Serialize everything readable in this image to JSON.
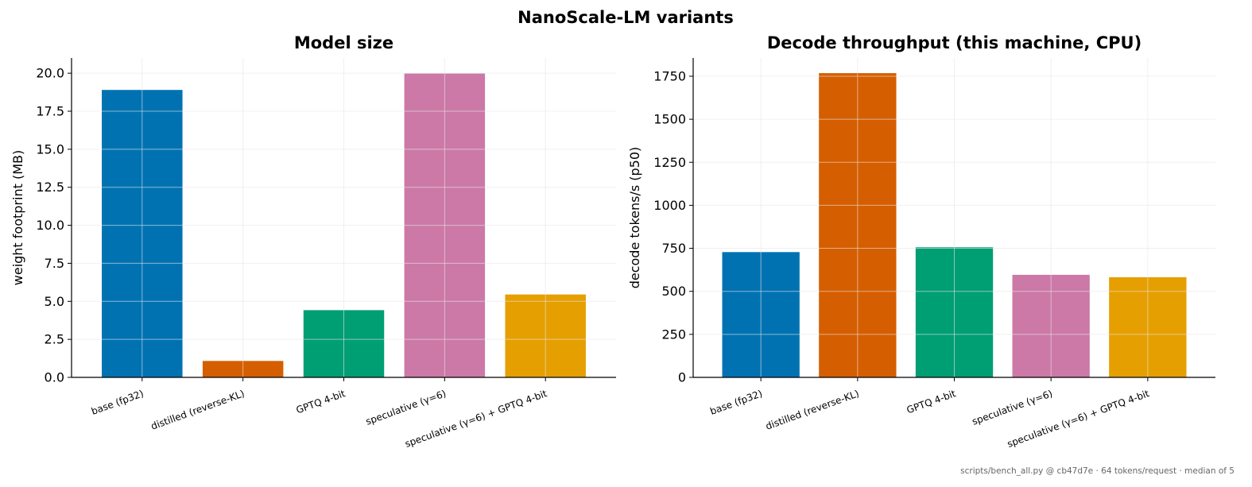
{
  "figure": {
    "suptitle": "NanoScale-LM variants",
    "footer": "scripts/bench_all.py @ cb47d7e · 64 tokens/request · median of 5"
  },
  "colors": [
    "#0072b2",
    "#d55e00",
    "#009e73",
    "#cc79a7",
    "#e69f00"
  ],
  "chart_data": [
    {
      "type": "bar",
      "title": "Model size",
      "xlabel": "",
      "ylabel": "weight footprint (MB)",
      "categories": [
        "base (fp32)",
        "distilled (reverse-KL)",
        "GPTQ 4-bit",
        "speculative (γ=6)",
        "speculative (γ=6) + GPTQ 4-bit"
      ],
      "values": [
        18.9,
        1.08,
        4.42,
        19.98,
        5.45
      ],
      "ylim": [
        0,
        21
      ],
      "yticks": [
        0,
        2.5,
        5,
        7.5,
        10,
        12.5,
        15,
        17.5,
        20
      ],
      "ytick_labels": [
        "0.0",
        "2.5",
        "5.0",
        "7.5",
        "10.0",
        "12.5",
        "15.0",
        "17.5",
        "20.0"
      ],
      "grid": true
    },
    {
      "type": "bar",
      "title": "Decode throughput (this machine, CPU)",
      "xlabel": "",
      "ylabel": "decode tokens/s (p50)",
      "categories": [
        "base (fp32)",
        "distilled (reverse-KL)",
        "GPTQ 4-bit",
        "speculative (γ=6)",
        "speculative (γ=6) + GPTQ 4-bit"
      ],
      "values": [
        728,
        1768,
        756,
        596,
        582
      ],
      "ylim": [
        0,
        1856
      ],
      "yticks": [
        0,
        250,
        500,
        750,
        1000,
        1250,
        1500,
        1750
      ],
      "ytick_labels": [
        "0",
        "250",
        "500",
        "750",
        "1000",
        "1250",
        "1500",
        "1750"
      ],
      "grid": true
    }
  ]
}
